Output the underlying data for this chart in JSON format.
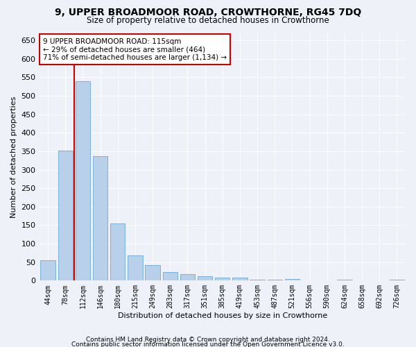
{
  "title": "9, UPPER BROADMOOR ROAD, CROWTHORNE, RG45 7DQ",
  "subtitle": "Size of property relative to detached houses in Crowthorne",
  "xlabel": "Distribution of detached houses by size in Crowthorne",
  "ylabel": "Number of detached properties",
  "categories": [
    "44sqm",
    "78sqm",
    "112sqm",
    "146sqm",
    "180sqm",
    "215sqm",
    "249sqm",
    "283sqm",
    "317sqm",
    "351sqm",
    "385sqm",
    "419sqm",
    "453sqm",
    "487sqm",
    "521sqm",
    "556sqm",
    "590sqm",
    "624sqm",
    "658sqm",
    "692sqm",
    "726sqm"
  ],
  "values": [
    55,
    352,
    540,
    337,
    155,
    68,
    41,
    23,
    18,
    11,
    8,
    8,
    2,
    2,
    4,
    1,
    1,
    2,
    1,
    1,
    3
  ],
  "bar_color": "#b8d0ea",
  "bar_edgecolor": "#6aaad4",
  "vline_color": "#cc0000",
  "vline_bar_index": 2,
  "annotation_line1": "9 UPPER BROADMOOR ROAD: 115sqm",
  "annotation_line2": "← 29% of detached houses are smaller (464)",
  "annotation_line3": "71% of semi-detached houses are larger (1,134) →",
  "annotation_box_facecolor": "#ffffff",
  "annotation_box_edgecolor": "#cc0000",
  "ylim_max": 670,
  "ytick_step": 50,
  "footer1": "Contains HM Land Registry data © Crown copyright and database right 2024.",
  "footer2": "Contains public sector information licensed under the Open Government Licence v3.0.",
  "bg_color": "#eef2f8"
}
